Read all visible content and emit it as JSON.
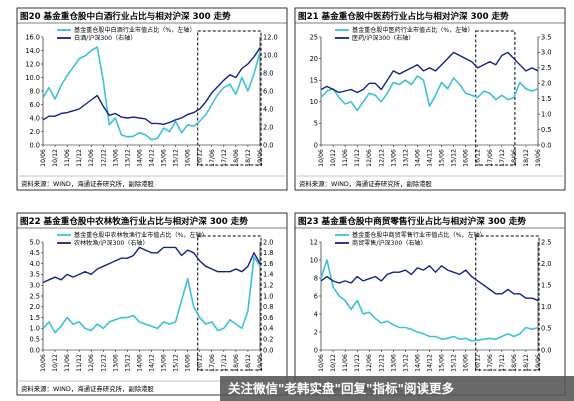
{
  "colors": {
    "share": "#3cc1d8",
    "relative": "#13238a",
    "frame": "#000000"
  },
  "watermark": "关注微信\"老韩实盘\"回复\"指标\"阅读更多",
  "x_ticks": [
    "10/06",
    "10/12",
    "11/06",
    "11/12",
    "12/06",
    "12/12",
    "13/06",
    "13/12",
    "14/06",
    "14/12",
    "15/06",
    "15/12",
    "16/06",
    "16/12",
    "17/06",
    "17/12",
    "18/06",
    "18/12",
    "19/06"
  ],
  "panels": [
    {
      "title": "图20 基金重仓股中白酒行业占比与相对沪深 300 走势",
      "source": "资料来源：WIND，海通证券研究所，副除港股",
      "legend": [
        "基金重仓股中白酒行业市值占比（%，左轴）",
        "白酒/沪深300（右轴）"
      ],
      "left_ticks": [
        "0.0",
        "2.0",
        "4.0",
        "6.0",
        "8.0",
        "10.0",
        "12.0",
        "14.0",
        "16.0"
      ],
      "right_ticks": [
        "0.0",
        "2.0",
        "4.0",
        "6.0",
        "8.0",
        "10.0",
        "12.0"
      ]
    },
    {
      "title": "图21 基金重仓股中医药行业占比与相对沪深 300 走势",
      "source": "资料来源：WIND，海通证券研究所，副除港股",
      "legend": [
        "基金重仓股中医药行业市值占比（%，左轴）",
        "医药/沪深300（右轴）"
      ],
      "left_ticks": [
        "0",
        "5",
        "10",
        "15",
        "20",
        "25"
      ],
      "right_ticks": [
        "0.0",
        "0.5",
        "1.0",
        "1.5",
        "2.0",
        "2.5",
        "3.0",
        "3.5"
      ]
    },
    {
      "title": "图22 基金重仓股中农林牧渔行业占比与相对沪深 300 走势",
      "source": "资料来源：WIND，海通证券研究所，副除港股",
      "legend": [
        "基金重仓股中农林牧渔行业市值占比（%，左轴）",
        "农林牧渔/沪深300（右轴）"
      ],
      "left_ticks": [
        "0.0",
        "0.5",
        "1.0",
        "1.5",
        "2.0",
        "2.5",
        "3.0",
        "3.5",
        "4.0",
        "4.5",
        "5.0"
      ],
      "right_ticks": [
        "0.0",
        "0.2",
        "0.4",
        "0.6",
        "0.8",
        "1.0",
        "1.2",
        "1.4",
        "1.6",
        "1.8",
        "2.0"
      ]
    },
    {
      "title": "图23 基金重仓股中商贸零售行业占比与相对沪深 300 走势",
      "source": "资料来源：WIND，海通证券研究所，副除港股",
      "legend": [
        "基金重仓股中商贸零售行业市值占比（%，左轴）",
        "商贸零售/沪深300（右轴）"
      ],
      "left_ticks": [
        "0",
        "2",
        "4",
        "6",
        "8",
        "10",
        "12"
      ],
      "right_ticks": [
        "0.0",
        "0.5",
        "1.0",
        "1.5",
        "2.0",
        "2.5"
      ]
    }
  ],
  "chart_data": [
    {
      "type": "line",
      "title": "图20 基金重仓股中白酒行业占比与相对沪深 300 走势",
      "x_range": [
        "2010-06",
        "2019-06"
      ],
      "ylim_left": [
        0,
        16
      ],
      "ylim_right": [
        0,
        12
      ],
      "highlight_range": [
        "2016-12",
        "2019-06"
      ],
      "series": [
        {
          "name": "基金重仓股中白酒行业市值占比（%，左轴）",
          "axis": "left",
          "x": [
            "2010-06",
            "2010-09",
            "2010-12",
            "2011-03",
            "2011-06",
            "2011-09",
            "2011-12",
            "2012-03",
            "2012-06",
            "2012-09",
            "2012-12",
            "2013-03",
            "2013-06",
            "2013-09",
            "2013-12",
            "2014-03",
            "2014-06",
            "2014-09",
            "2014-12",
            "2015-03",
            "2015-06",
            "2015-09",
            "2015-12",
            "2016-03",
            "2016-06",
            "2016-09",
            "2016-12",
            "2017-03",
            "2017-06",
            "2017-09",
            "2017-12",
            "2018-03",
            "2018-06",
            "2018-09",
            "2018-12",
            "2019-03",
            "2019-06"
          ],
          "values": [
            7.0,
            8.5,
            6.8,
            8.8,
            10.3,
            11.5,
            12.8,
            13.2,
            14.0,
            14.5,
            9.5,
            3.0,
            4.0,
            1.5,
            1.2,
            1.3,
            1.8,
            1.5,
            0.8,
            1.0,
            2.5,
            2.0,
            3.5,
            1.8,
            3.0,
            2.8,
            3.5,
            4.5,
            6.0,
            7.5,
            8.5,
            9.0,
            7.5,
            10.0,
            8.0,
            10.5,
            13.8
          ]
        },
        {
          "name": "白酒/沪深300（右轴）",
          "axis": "right",
          "x": [
            "2010-06",
            "2010-09",
            "2010-12",
            "2011-03",
            "2011-06",
            "2011-09",
            "2011-12",
            "2012-03",
            "2012-06",
            "2012-09",
            "2012-12",
            "2013-03",
            "2013-06",
            "2013-09",
            "2013-12",
            "2014-03",
            "2014-06",
            "2014-09",
            "2014-12",
            "2015-03",
            "2015-06",
            "2015-09",
            "2015-12",
            "2016-03",
            "2016-06",
            "2016-09",
            "2016-12",
            "2017-03",
            "2017-06",
            "2017-09",
            "2017-12",
            "2018-03",
            "2018-06",
            "2018-09",
            "2018-12",
            "2019-03",
            "2019-06"
          ],
          "values": [
            2.8,
            3.2,
            3.2,
            3.5,
            3.6,
            3.8,
            4.0,
            4.5,
            5.0,
            5.5,
            4.3,
            3.3,
            3.5,
            3.1,
            3.0,
            3.1,
            3.0,
            2.9,
            2.4,
            2.4,
            2.3,
            2.5,
            2.8,
            3.0,
            3.4,
            3.6,
            4.0,
            4.8,
            5.8,
            6.5,
            7.2,
            7.8,
            7.5,
            8.5,
            9.0,
            9.8,
            10.8
          ]
        }
      ]
    },
    {
      "type": "line",
      "title": "图21 基金重仓股中医药行业占比与相对沪深 300 走势",
      "x_range": [
        "2010-06",
        "2019-06"
      ],
      "ylim_left": [
        0,
        25
      ],
      "ylim_right": [
        0,
        3.5
      ],
      "highlight_range": [
        "2016-12",
        "2018-06"
      ],
      "series": [
        {
          "name": "基金重仓股中医药行业市值占比（%，左轴）",
          "axis": "left",
          "x": [
            "2010-06",
            "2010-09",
            "2010-12",
            "2011-03",
            "2011-06",
            "2011-09",
            "2011-12",
            "2012-03",
            "2012-06",
            "2012-09",
            "2012-12",
            "2013-03",
            "2013-06",
            "2013-09",
            "2013-12",
            "2014-03",
            "2014-06",
            "2014-09",
            "2014-12",
            "2015-03",
            "2015-06",
            "2015-09",
            "2015-12",
            "2016-03",
            "2016-06",
            "2016-09",
            "2016-12",
            "2017-03",
            "2017-06",
            "2017-09",
            "2017-12",
            "2018-03",
            "2018-06",
            "2018-09",
            "2018-12",
            "2019-03",
            "2019-06"
          ],
          "values": [
            11.0,
            12.5,
            13.0,
            11.0,
            9.5,
            10.0,
            8.0,
            10.0,
            12.0,
            11.5,
            10.0,
            12.0,
            14.5,
            14.0,
            15.0,
            14.0,
            16.0,
            15.0,
            9.0,
            11.5,
            14.5,
            13.0,
            15.5,
            14.0,
            12.0,
            11.5,
            11.0,
            12.5,
            12.0,
            10.5,
            11.5,
            10.5,
            11.0,
            14.5,
            13.0,
            12.5,
            13.0
          ]
        },
        {
          "name": "医药/沪深300（右轴）",
          "axis": "right",
          "x": [
            "2010-06",
            "2010-09",
            "2010-12",
            "2011-03",
            "2011-06",
            "2011-09",
            "2011-12",
            "2012-03",
            "2012-06",
            "2012-09",
            "2012-12",
            "2013-03",
            "2013-06",
            "2013-09",
            "2013-12",
            "2014-03",
            "2014-06",
            "2014-09",
            "2014-12",
            "2015-03",
            "2015-06",
            "2015-09",
            "2015-12",
            "2016-03",
            "2016-06",
            "2016-09",
            "2016-12",
            "2017-03",
            "2017-06",
            "2017-09",
            "2017-12",
            "2018-03",
            "2018-06",
            "2018-09",
            "2018-12",
            "2019-03",
            "2019-06"
          ],
          "values": [
            1.8,
            1.9,
            1.8,
            1.7,
            1.75,
            1.8,
            1.7,
            1.8,
            2.0,
            2.0,
            1.8,
            2.1,
            2.4,
            2.3,
            2.4,
            2.5,
            2.6,
            2.4,
            2.5,
            2.4,
            2.6,
            2.8,
            3.0,
            2.9,
            2.8,
            2.7,
            2.5,
            2.6,
            2.7,
            2.6,
            2.9,
            3.0,
            2.8,
            2.6,
            2.4,
            2.5,
            2.4
          ]
        }
      ]
    },
    {
      "type": "line",
      "title": "图22 基金重仓股中农林牧渔行业占比与相对沪深 300 走势",
      "x_range": [
        "2010-06",
        "2019-06"
      ],
      "ylim_left": [
        0,
        5
      ],
      "ylim_right": [
        0,
        2.0
      ],
      "highlight_range": [
        "2016-12",
        "2019-06"
      ],
      "series": [
        {
          "name": "基金重仓股中农林牧渔行业市值占比（%，左轴）",
          "axis": "left",
          "x": [
            "2010-06",
            "2010-09",
            "2010-12",
            "2011-03",
            "2011-06",
            "2011-09",
            "2011-12",
            "2012-03",
            "2012-06",
            "2012-09",
            "2012-12",
            "2013-03",
            "2013-06",
            "2013-09",
            "2013-12",
            "2014-03",
            "2014-06",
            "2014-09",
            "2014-12",
            "2015-03",
            "2015-06",
            "2015-09",
            "2015-12",
            "2016-03",
            "2016-06",
            "2016-09",
            "2016-12",
            "2017-03",
            "2017-06",
            "2017-09",
            "2017-12",
            "2018-03",
            "2018-06",
            "2018-09",
            "2018-12",
            "2019-03",
            "2019-06"
          ],
          "values": [
            1.0,
            1.3,
            0.8,
            1.1,
            1.5,
            1.2,
            1.3,
            1.0,
            0.9,
            1.2,
            1.0,
            1.3,
            1.4,
            1.5,
            1.5,
            1.6,
            1.3,
            1.2,
            1.1,
            1.0,
            1.3,
            1.2,
            1.3,
            2.3,
            3.3,
            2.0,
            1.5,
            1.2,
            1.3,
            0.9,
            1.0,
            1.4,
            1.2,
            1.0,
            1.8,
            4.3,
            3.9
          ]
        },
        {
          "name": "农林牧渔/沪深300（右轴）",
          "axis": "right",
          "x": [
            "2010-06",
            "2010-09",
            "2010-12",
            "2011-03",
            "2011-06",
            "2011-09",
            "2011-12",
            "2012-03",
            "2012-06",
            "2012-09",
            "2012-12",
            "2013-03",
            "2013-06",
            "2013-09",
            "2013-12",
            "2014-03",
            "2014-06",
            "2014-09",
            "2014-12",
            "2015-03",
            "2015-06",
            "2015-09",
            "2015-12",
            "2016-03",
            "2016-06",
            "2016-09",
            "2016-12",
            "2017-03",
            "2017-06",
            "2017-09",
            "2017-12",
            "2018-03",
            "2018-06",
            "2018-09",
            "2018-12",
            "2019-03",
            "2019-06"
          ],
          "values": [
            1.25,
            1.3,
            1.35,
            1.3,
            1.4,
            1.35,
            1.4,
            1.45,
            1.4,
            1.5,
            1.55,
            1.6,
            1.65,
            1.7,
            1.7,
            1.75,
            1.9,
            1.85,
            1.8,
            1.8,
            1.9,
            1.9,
            1.9,
            1.75,
            1.85,
            1.8,
            1.65,
            1.55,
            1.5,
            1.45,
            1.45,
            1.45,
            1.5,
            1.45,
            1.55,
            1.8,
            1.6
          ]
        }
      ]
    },
    {
      "type": "line",
      "title": "图23 基金重仓股中商贸零售行业占比与相对沪深 300 走势",
      "x_range": [
        "2010-06",
        "2019-06"
      ],
      "ylim_left": [
        0,
        12
      ],
      "ylim_right": [
        0,
        2.5
      ],
      "highlight_range": [
        "2016-12",
        "2019-06"
      ],
      "series": [
        {
          "name": "基金重仓股中商贸零售行业市值占比（%，左轴）",
          "axis": "left",
          "x": [
            "2010-06",
            "2010-09",
            "2010-12",
            "2011-03",
            "2011-06",
            "2011-09",
            "2011-12",
            "2012-03",
            "2012-06",
            "2012-09",
            "2012-12",
            "2013-03",
            "2013-06",
            "2013-09",
            "2013-12",
            "2014-03",
            "2014-06",
            "2014-09",
            "2014-12",
            "2015-03",
            "2015-06",
            "2015-09",
            "2015-12",
            "2016-03",
            "2016-06",
            "2016-09",
            "2016-12",
            "2017-03",
            "2017-06",
            "2017-09",
            "2017-12",
            "2018-03",
            "2018-06",
            "2018-09",
            "2018-12",
            "2019-03",
            "2019-06"
          ],
          "values": [
            8.0,
            10.0,
            7.0,
            6.0,
            5.5,
            4.5,
            5.5,
            4.0,
            4.2,
            3.5,
            3.0,
            3.2,
            2.8,
            2.5,
            2.5,
            2.3,
            2.0,
            1.8,
            1.5,
            1.5,
            1.2,
            1.3,
            1.5,
            1.2,
            1.3,
            1.0,
            1.1,
            1.2,
            1.3,
            1.2,
            1.5,
            1.8,
            1.5,
            1.8,
            2.5,
            2.3,
            2.5
          ]
        },
        {
          "name": "商贸零售/沪深300（右轴）",
          "axis": "right",
          "x": [
            "2010-06",
            "2010-09",
            "2010-12",
            "2011-03",
            "2011-06",
            "2011-09",
            "2011-12",
            "2012-03",
            "2012-06",
            "2012-09",
            "2012-12",
            "2013-03",
            "2013-06",
            "2013-09",
            "2013-12",
            "2014-03",
            "2014-06",
            "2014-09",
            "2014-12",
            "2015-03",
            "2015-06",
            "2015-09",
            "2015-12",
            "2016-03",
            "2016-06",
            "2016-09",
            "2016-12",
            "2017-03",
            "2017-06",
            "2017-09",
            "2017-12",
            "2018-03",
            "2018-06",
            "2018-09",
            "2018-12",
            "2019-03",
            "2019-06"
          ],
          "values": [
            1.6,
            1.7,
            1.6,
            1.55,
            1.6,
            1.55,
            1.7,
            1.6,
            1.65,
            1.7,
            1.6,
            1.75,
            1.8,
            1.8,
            1.85,
            1.75,
            1.9,
            1.85,
            1.95,
            1.8,
            1.95,
            1.85,
            1.8,
            1.75,
            1.85,
            1.7,
            1.6,
            1.5,
            1.4,
            1.3,
            1.3,
            1.4,
            1.3,
            1.3,
            1.2,
            1.2,
            1.15
          ]
        }
      ]
    }
  ]
}
